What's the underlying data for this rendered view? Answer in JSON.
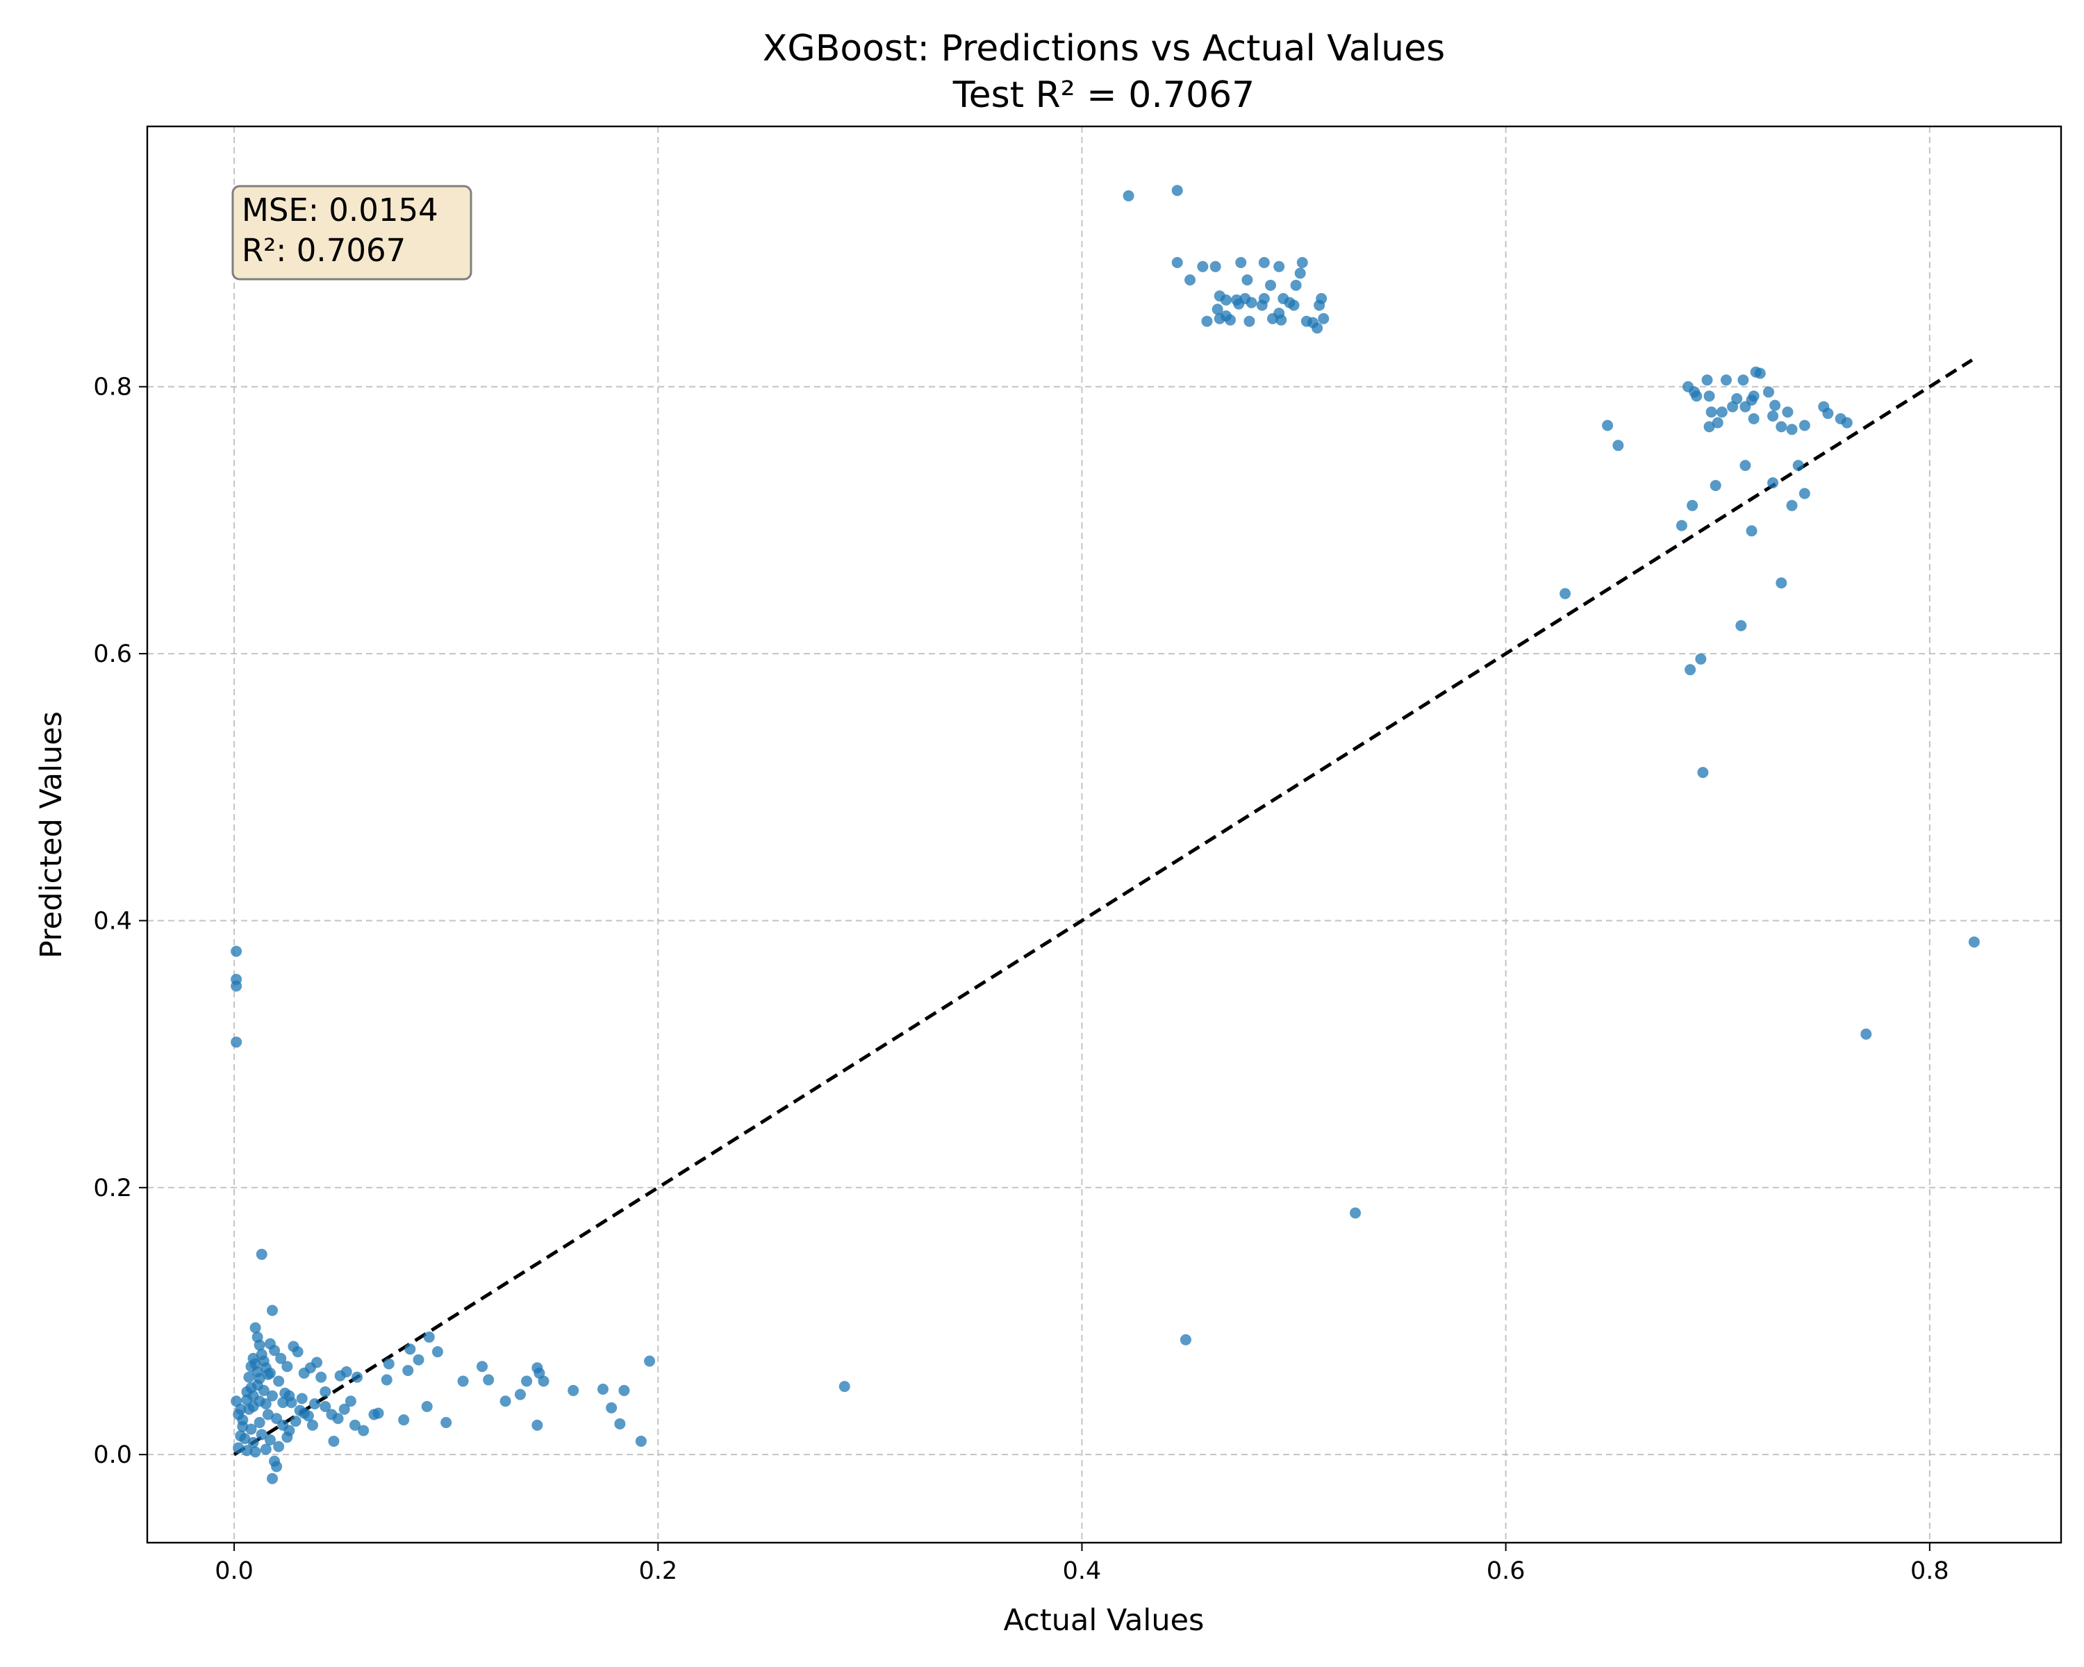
{
  "chart_data": {
    "type": "scatter",
    "title": "XGBoost: Predictions vs Actual Values",
    "subtitle": "Test R² = 0.7067",
    "xlabel": "Actual Values",
    "ylabel": "Predicted Values",
    "xlim": [
      -0.041,
      0.862
    ],
    "ylim": [
      -0.066,
      0.995
    ],
    "xticks": [
      "0.0",
      "0.2",
      "0.4",
      "0.6",
      "0.8"
    ],
    "yticks": [
      "0.0",
      "0.2",
      "0.4",
      "0.6",
      "0.8"
    ],
    "grid": true,
    "point_color": "#1f77b4",
    "annotation": {
      "mse_line": "MSE: 0.0154",
      "r2_line": "R²: 0.7067",
      "box_fill": "#f6e8cc",
      "box_edge": "#7f7f7f",
      "placement": "top-left"
    },
    "reference_line": {
      "style": "dashed",
      "color": "#000000",
      "from": [
        0.0,
        0.0
      ],
      "to": [
        0.82,
        0.82
      ]
    },
    "series": [
      {
        "points": [
          [
            0.422,
            0.943
          ],
          [
            0.445,
            0.947
          ],
          [
            0.445,
            0.893
          ],
          [
            0.451,
            0.88
          ],
          [
            0.457,
            0.89
          ],
          [
            0.463,
            0.89
          ],
          [
            0.475,
            0.893
          ],
          [
            0.486,
            0.893
          ],
          [
            0.493,
            0.89
          ],
          [
            0.504,
            0.893
          ],
          [
            0.503,
            0.885
          ],
          [
            0.501,
            0.876
          ],
          [
            0.489,
            0.876
          ],
          [
            0.478,
            0.88
          ],
          [
            0.465,
            0.868
          ],
          [
            0.468,
            0.865
          ],
          [
            0.473,
            0.865
          ],
          [
            0.477,
            0.866
          ],
          [
            0.48,
            0.863
          ],
          [
            0.486,
            0.866
          ],
          [
            0.495,
            0.866
          ],
          [
            0.498,
            0.863
          ],
          [
            0.5,
            0.861
          ],
          [
            0.513,
            0.866
          ],
          [
            0.512,
            0.861
          ],
          [
            0.464,
            0.858
          ],
          [
            0.465,
            0.851
          ],
          [
            0.468,
            0.853
          ],
          [
            0.459,
            0.849
          ],
          [
            0.47,
            0.85
          ],
          [
            0.479,
            0.849
          ],
          [
            0.49,
            0.851
          ],
          [
            0.494,
            0.85
          ],
          [
            0.506,
            0.849
          ],
          [
            0.509,
            0.848
          ],
          [
            0.511,
            0.844
          ],
          [
            0.514,
            0.851
          ],
          [
            0.493,
            0.855
          ],
          [
            0.485,
            0.861
          ],
          [
            0.474,
            0.862
          ],
          [
            0.686,
            0.8
          ],
          [
            0.689,
            0.796
          ],
          [
            0.695,
            0.805
          ],
          [
            0.704,
            0.805
          ],
          [
            0.712,
            0.805
          ],
          [
            0.718,
            0.811
          ],
          [
            0.72,
            0.81
          ],
          [
            0.724,
            0.796
          ],
          [
            0.717,
            0.793
          ],
          [
            0.716,
            0.79
          ],
          [
            0.709,
            0.791
          ],
          [
            0.69,
            0.793
          ],
          [
            0.696,
            0.793
          ],
          [
            0.707,
            0.785
          ],
          [
            0.702,
            0.781
          ],
          [
            0.713,
            0.785
          ],
          [
            0.727,
            0.786
          ],
          [
            0.733,
            0.781
          ],
          [
            0.726,
            0.778
          ],
          [
            0.73,
            0.77
          ],
          [
            0.741,
            0.771
          ],
          [
            0.75,
            0.785
          ],
          [
            0.752,
            0.78
          ],
          [
            0.758,
            0.776
          ],
          [
            0.761,
            0.773
          ],
          [
            0.697,
            0.781
          ],
          [
            0.7,
            0.773
          ],
          [
            0.696,
            0.77
          ],
          [
            0.717,
            0.776
          ],
          [
            0.735,
            0.768
          ],
          [
            0.648,
            0.771
          ],
          [
            0.653,
            0.756
          ],
          [
            0.699,
            0.726
          ],
          [
            0.713,
            0.741
          ],
          [
            0.726,
            0.728
          ],
          [
            0.738,
            0.741
          ],
          [
            0.741,
            0.72
          ],
          [
            0.735,
            0.711
          ],
          [
            0.688,
            0.711
          ],
          [
            0.683,
            0.696
          ],
          [
            0.716,
            0.692
          ],
          [
            0.628,
            0.645
          ],
          [
            0.73,
            0.653
          ],
          [
            0.711,
            0.621
          ],
          [
            0.692,
            0.596
          ],
          [
            0.687,
            0.588
          ],
          [
            0.693,
            0.511
          ],
          [
            0.77,
            0.315
          ],
          [
            0.821,
            0.384
          ],
          [
            0.529,
            0.181
          ],
          [
            0.449,
            0.086
          ],
          [
            0.288,
            0.051
          ],
          [
            0.001,
            0.377
          ],
          [
            0.001,
            0.356
          ],
          [
            0.001,
            0.351
          ],
          [
            0.001,
            0.309
          ],
          [
            0.013,
            0.15
          ],
          [
            0.018,
            0.108
          ],
          [
            0.003,
            0.034
          ],
          [
            0.006,
            0.041
          ],
          [
            0.009,
            0.036
          ],
          [
            0.011,
            0.052
          ],
          [
            0.014,
            0.048
          ],
          [
            0.017,
            0.061
          ],
          [
            0.021,
            0.055
          ],
          [
            0.024,
            0.046
          ],
          [
            0.027,
            0.039
          ],
          [
            0.031,
            0.033
          ],
          [
            0.035,
            0.029
          ],
          [
            0.004,
            0.021
          ],
          [
            0.008,
            0.019
          ],
          [
            0.012,
            0.024
          ],
          [
            0.016,
            0.03
          ],
          [
            0.02,
            0.027
          ],
          [
            0.023,
            0.022
          ],
          [
            0.026,
            0.018
          ],
          [
            0.029,
            0.025
          ],
          [
            0.033,
            0.031
          ],
          [
            0.037,
            0.022
          ],
          [
            0.005,
            0.012
          ],
          [
            0.009,
            0.009
          ],
          [
            0.013,
            0.015
          ],
          [
            0.017,
            0.011
          ],
          [
            0.021,
            0.006
          ],
          [
            0.025,
            0.013
          ],
          [
            0.002,
            0.005
          ],
          [
            0.006,
            0.003
          ],
          [
            0.01,
            0.002
          ],
          [
            0.015,
            0.004
          ],
          [
            0.019,
            -0.005
          ],
          [
            0.02,
            -0.009
          ],
          [
            0.018,
            -0.018
          ],
          [
            0.01,
            0.095
          ],
          [
            0.011,
            0.088
          ],
          [
            0.012,
            0.082
          ],
          [
            0.013,
            0.075
          ],
          [
            0.014,
            0.07
          ],
          [
            0.015,
            0.065
          ],
          [
            0.016,
            0.06
          ],
          [
            0.01,
            0.068
          ],
          [
            0.011,
            0.062
          ],
          [
            0.012,
            0.057
          ],
          [
            0.009,
            0.072
          ],
          [
            0.008,
            0.066
          ],
          [
            0.007,
            0.058
          ],
          [
            0.008,
            0.05
          ],
          [
            0.006,
            0.047
          ],
          [
            0.022,
            0.072
          ],
          [
            0.025,
            0.066
          ],
          [
            0.028,
            0.081
          ],
          [
            0.03,
            0.077
          ],
          [
            0.033,
            0.061
          ],
          [
            0.036,
            0.065
          ],
          [
            0.039,
            0.069
          ],
          [
            0.041,
            0.058
          ],
          [
            0.019,
            0.078
          ],
          [
            0.017,
            0.083
          ],
          [
            0.023,
            0.039
          ],
          [
            0.026,
            0.044
          ],
          [
            0.032,
            0.042
          ],
          [
            0.038,
            0.038
          ],
          [
            0.043,
            0.036
          ],
          [
            0.046,
            0.03
          ],
          [
            0.049,
            0.027
          ],
          [
            0.052,
            0.034
          ],
          [
            0.055,
            0.04
          ],
          [
            0.047,
            0.01
          ],
          [
            0.001,
            0.04
          ],
          [
            0.002,
            0.03
          ],
          [
            0.003,
            0.014
          ],
          [
            0.004,
            0.026
          ],
          [
            0.007,
            0.034
          ],
          [
            0.015,
            0.038
          ],
          [
            0.018,
            0.044
          ],
          [
            0.012,
            0.04
          ],
          [
            0.009,
            0.044
          ],
          [
            0.05,
            0.059
          ],
          [
            0.053,
            0.062
          ],
          [
            0.057,
            0.022
          ],
          [
            0.058,
            0.058
          ],
          [
            0.066,
            0.03
          ],
          [
            0.068,
            0.031
          ],
          [
            0.072,
            0.056
          ],
          [
            0.073,
            0.068
          ],
          [
            0.08,
            0.026
          ],
          [
            0.082,
            0.063
          ],
          [
            0.083,
            0.079
          ],
          [
            0.087,
            0.071
          ],
          [
            0.091,
            0.036
          ],
          [
            0.092,
            0.088
          ],
          [
            0.096,
            0.077
          ],
          [
            0.1,
            0.024
          ],
          [
            0.108,
            0.055
          ],
          [
            0.117,
            0.066
          ],
          [
            0.12,
            0.056
          ],
          [
            0.128,
            0.04
          ],
          [
            0.135,
            0.045
          ],
          [
            0.138,
            0.055
          ],
          [
            0.143,
            0.065
          ],
          [
            0.144,
            0.061
          ],
          [
            0.146,
            0.055
          ],
          [
            0.143,
            0.022
          ],
          [
            0.16,
            0.048
          ],
          [
            0.174,
            0.049
          ],
          [
            0.178,
            0.035
          ],
          [
            0.182,
            0.023
          ],
          [
            0.184,
            0.048
          ],
          [
            0.192,
            0.01
          ],
          [
            0.196,
            0.07
          ],
          [
            0.061,
            0.018
          ],
          [
            0.043,
            0.047
          ]
        ]
      }
    ]
  }
}
